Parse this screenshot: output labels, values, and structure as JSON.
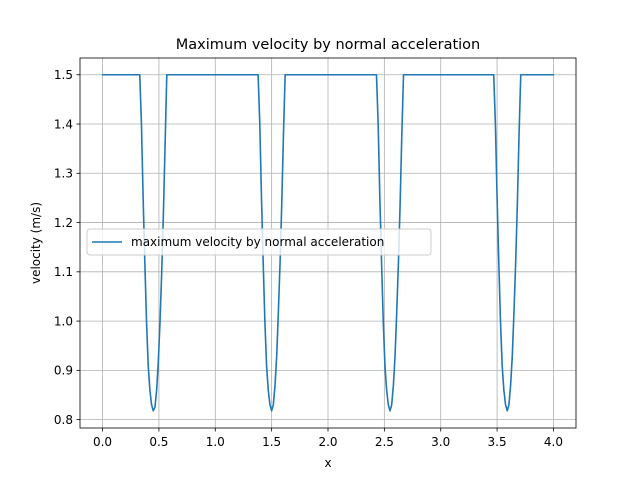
{
  "chart_data": {
    "type": "line",
    "title": "Maximum velocity by normal acceleration",
    "xlabel": "x",
    "ylabel": "velocity (m/s)",
    "xlim": [
      -0.2,
      4.2
    ],
    "ylim": [
      0.783,
      1.534
    ],
    "xticks": [
      "0.0",
      "0.5",
      "1.0",
      "1.5",
      "2.0",
      "2.5",
      "3.0",
      "3.5",
      "4.0"
    ],
    "yticks": [
      "0.8",
      "0.9",
      "1.0",
      "1.1",
      "1.2",
      "1.3",
      "1.4",
      "1.5"
    ],
    "grid": true,
    "legend_position": "center-left",
    "series": [
      {
        "name": "maximum velocity by normal acceleration",
        "color": "#1f77b4",
        "x": [
          0.0,
          0.33,
          0.345,
          0.36,
          0.375,
          0.39,
          0.405,
          0.42,
          0.435,
          0.45,
          0.465,
          0.48,
          0.495,
          0.51,
          0.525,
          0.54,
          0.555,
          0.57,
          0.585,
          0.6,
          1.38,
          1.395,
          1.41,
          1.425,
          1.44,
          1.455,
          1.47,
          1.485,
          1.5,
          1.515,
          1.53,
          1.545,
          1.56,
          1.575,
          1.59,
          1.605,
          1.62,
          1.635,
          1.65,
          2.43,
          2.445,
          2.46,
          2.475,
          2.49,
          2.505,
          2.52,
          2.535,
          2.55,
          2.565,
          2.58,
          2.595,
          2.61,
          2.625,
          2.64,
          2.655,
          2.67,
          2.685,
          2.7,
          3.47,
          3.485,
          3.5,
          3.515,
          3.53,
          3.545,
          3.56,
          3.575,
          3.59,
          3.605,
          3.62,
          3.635,
          3.65,
          3.665,
          3.68,
          3.695,
          3.71,
          3.725,
          3.74,
          4.0
        ],
        "y": [
          1.5,
          1.5,
          1.4,
          1.25,
          1.12,
          1.0,
          0.91,
          0.86,
          0.83,
          0.818,
          0.825,
          0.86,
          0.92,
          1.0,
          1.1,
          1.22,
          1.36,
          1.5,
          1.5,
          1.5,
          1.5,
          1.4,
          1.25,
          1.12,
          1.0,
          0.91,
          0.86,
          0.83,
          0.818,
          0.83,
          0.87,
          0.93,
          1.02,
          1.12,
          1.24,
          1.38,
          1.5,
          1.5,
          1.5,
          1.5,
          1.4,
          1.25,
          1.12,
          1.0,
          0.91,
          0.86,
          0.83,
          0.818,
          0.83,
          0.87,
          0.93,
          1.02,
          1.12,
          1.24,
          1.38,
          1.5,
          1.5,
          1.5,
          1.5,
          1.4,
          1.25,
          1.12,
          1.0,
          0.91,
          0.86,
          0.83,
          0.818,
          0.83,
          0.87,
          0.93,
          1.02,
          1.12,
          1.24,
          1.38,
          1.5,
          1.5,
          1.5,
          1.5
        ]
      }
    ]
  }
}
